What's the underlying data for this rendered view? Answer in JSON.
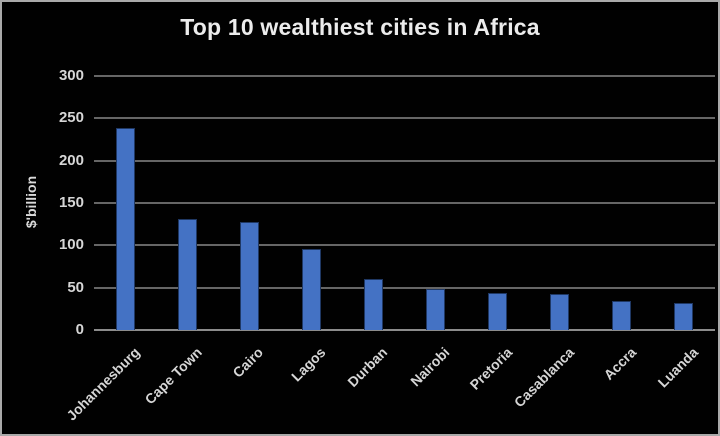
{
  "window": {
    "background": "#010101",
    "border_color": "#a9a9a9"
  },
  "chart_data": {
    "type": "bar",
    "title": "Top 10 wealthiest cities in Africa",
    "xlabel": "",
    "ylabel": "$'billion",
    "categories": [
      "Johannesburg",
      "Cape Town",
      "Cairo",
      "Lagos",
      "Durban",
      "Nairobi",
      "Pretoria",
      "Casablanca",
      "Accra",
      "Luanda"
    ],
    "values": [
      239,
      131,
      127,
      96,
      60,
      48,
      44,
      42,
      34,
      32
    ],
    "ylim": [
      0,
      300
    ],
    "yticks": [
      0,
      50,
      100,
      150,
      200,
      250,
      300
    ],
    "grid": "horizontal",
    "legend_position": "none",
    "bar_color": "#4472c4",
    "bar_border_color": "#1f3864",
    "gridline_color": "#666666",
    "axis_line_color": "#8c8c8c",
    "title_color": "#ececec",
    "tick_label_color": "#d6d6d6",
    "background_color": "#010101"
  }
}
